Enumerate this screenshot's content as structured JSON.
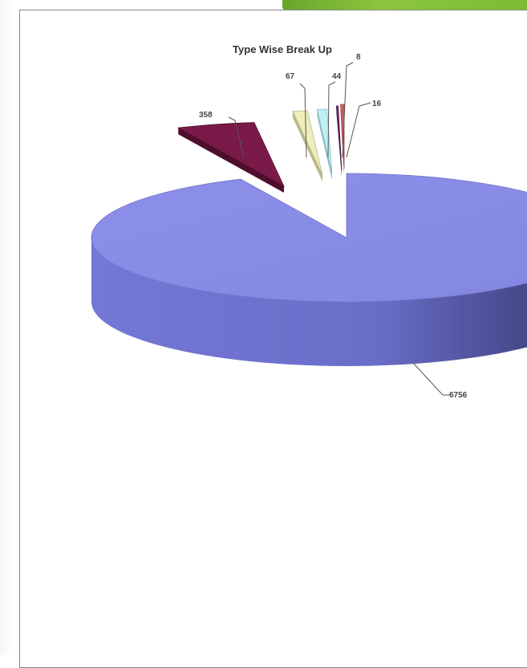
{
  "chart_data": {
    "type": "pie",
    "title": "Type Wise Break Up",
    "slices": [
      {
        "label": "6756",
        "value": 6756,
        "color": "#8a8fe6",
        "side": "#5a5fb0"
      },
      {
        "label": "358",
        "value": 358,
        "color": "#7a1a48",
        "side": "#4e0f2d"
      },
      {
        "label": "67",
        "value": 67,
        "color": "#eeeebb",
        "side": "#b8b88a"
      },
      {
        "label": "44",
        "value": 44,
        "color": "#bff0f5",
        "side": "#8cbfc5"
      },
      {
        "label": "8",
        "value": 8,
        "color": "#6b2a6b",
        "side": "#4a1a4a"
      },
      {
        "label": "16",
        "value": 16,
        "color": "#d06060",
        "side": "#9a3a3a"
      }
    ],
    "exploded": true,
    "three_d": true
  }
}
